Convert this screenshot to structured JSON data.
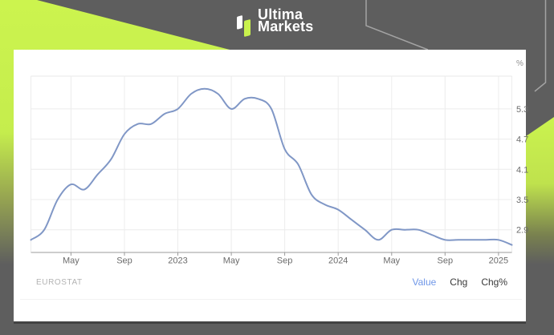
{
  "header": {
    "brand_line1": "Ultima",
    "brand_line2": "Markets"
  },
  "colors": {
    "background_gray": "#5e5e5e",
    "accent_lime": "#c9f24d",
    "card_white": "#ffffff",
    "line_blue": "#8097c6",
    "link_blue": "#6f97e8",
    "axis_text": "#6b6b6b",
    "source_text": "#b3b3b3"
  },
  "footer": {
    "source": "EUROSTAT",
    "links": [
      {
        "label": "Value",
        "active": true
      },
      {
        "label": "Chg",
        "active": false
      },
      {
        "label": "Chg%",
        "active": false
      }
    ]
  },
  "chart_data": {
    "type": "line",
    "unit": "%",
    "x": [
      "2022-02",
      "2022-03",
      "2022-04",
      "2022-05",
      "2022-06",
      "2022-07",
      "2022-08",
      "2022-09",
      "2022-10",
      "2022-11",
      "2022-12",
      "2023-01",
      "2023-02",
      "2023-03",
      "2023-04",
      "2023-05",
      "2023-06",
      "2023-07",
      "2023-08",
      "2023-09",
      "2023-10",
      "2023-11",
      "2023-12",
      "2024-01",
      "2024-02",
      "2024-03",
      "2024-04",
      "2024-05",
      "2024-06",
      "2024-07",
      "2024-08",
      "2024-09",
      "2024-10",
      "2024-11",
      "2024-12",
      "2025-01",
      "2025-02"
    ],
    "values": [
      2.7,
      2.9,
      3.5,
      3.8,
      3.7,
      4.0,
      4.3,
      4.8,
      5.0,
      5.0,
      5.2,
      5.3,
      5.6,
      5.7,
      5.6,
      5.3,
      5.5,
      5.5,
      5.3,
      4.5,
      4.2,
      3.6,
      3.4,
      3.3,
      3.1,
      2.9,
      2.7,
      2.9,
      2.9,
      2.9,
      2.8,
      2.7,
      2.7,
      2.7,
      2.7,
      2.7,
      2.6
    ],
    "x_tick_labels": [
      "May",
      "Sep",
      "2023",
      "May",
      "Sep",
      "2024",
      "May",
      "Sep",
      "2025"
    ],
    "x_tick_indices": [
      3,
      7,
      11,
      15,
      19,
      23,
      27,
      31,
      35
    ],
    "y_ticks": [
      2.9,
      3.5,
      4.1,
      4.7,
      5.3
    ],
    "ylim": [
      2.45,
      5.95
    ],
    "grid": true,
    "legend": "none",
    "line_color": "#8097c6",
    "source": "EUROSTAT"
  }
}
